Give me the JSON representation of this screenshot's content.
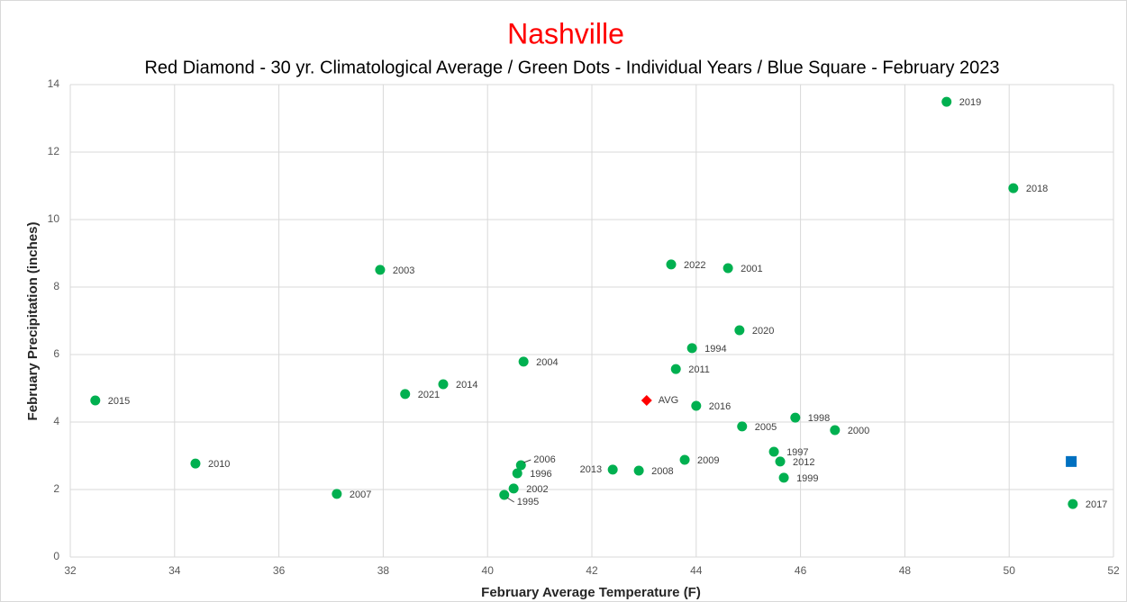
{
  "chart_data": {
    "type": "scatter",
    "title": "Nashville",
    "subtitle": "Red Diamond - 30 yr. Climatological Average / Green Dots - Individual Years / Blue Square - February 2023",
    "x_label": "February Average Temperature (F)",
    "y_label": "February Precipitation (inches)",
    "xlim": [
      32,
      52
    ],
    "xticks": [
      32,
      34,
      36,
      38,
      40,
      42,
      44,
      46,
      48,
      50,
      52
    ],
    "ylim": [
      0,
      14
    ],
    "yticks": [
      0,
      2,
      4,
      6,
      8,
      10,
      12,
      14
    ],
    "grid": true,
    "points_color": "#00b050",
    "points": [
      {
        "label": "2019",
        "x": 48.8,
        "y": 13.49
      },
      {
        "label": "2018",
        "x": 50.08,
        "y": 10.93
      },
      {
        "label": "2003",
        "x": 37.94,
        "y": 8.51
      },
      {
        "label": "2022",
        "x": 43.52,
        "y": 8.67
      },
      {
        "label": "2001",
        "x": 44.61,
        "y": 8.56
      },
      {
        "label": "2020",
        "x": 44.83,
        "y": 6.72
      },
      {
        "label": "1994",
        "x": 43.92,
        "y": 6.19
      },
      {
        "label": "2004",
        "x": 40.69,
        "y": 5.79
      },
      {
        "label": "2011",
        "x": 43.61,
        "y": 5.57
      },
      {
        "label": "2014",
        "x": 39.15,
        "y": 5.12
      },
      {
        "label": "2021",
        "x": 38.42,
        "y": 4.83
      },
      {
        "label": "2015",
        "x": 32.48,
        "y": 4.64
      },
      {
        "label": "2016",
        "x": 44.0,
        "y": 4.48
      },
      {
        "label": "1998",
        "x": 45.9,
        "y": 4.13
      },
      {
        "label": "2000",
        "x": 46.66,
        "y": 3.76
      },
      {
        "label": "2005",
        "x": 44.88,
        "y": 3.87
      },
      {
        "label": "1997",
        "x": 45.49,
        "y": 3.12
      },
      {
        "label": "2012",
        "x": 45.61,
        "y": 2.83
      },
      {
        "label": "1999",
        "x": 45.68,
        "y": 2.35
      },
      {
        "label": "2009",
        "x": 43.78,
        "y": 2.88
      },
      {
        "label": "2008",
        "x": 42.9,
        "y": 2.56
      },
      {
        "label": "2013",
        "x": 42.4,
        "y": 2.59
      },
      {
        "label": "2010",
        "x": 34.4,
        "y": 2.77
      },
      {
        "label": "2006",
        "x": 40.64,
        "y": 2.72
      },
      {
        "label": "1996",
        "x": 40.57,
        "y": 2.48
      },
      {
        "label": "2002",
        "x": 40.5,
        "y": 2.03
      },
      {
        "label": "1995",
        "x": 40.32,
        "y": 1.84
      },
      {
        "label": "2007",
        "x": 37.11,
        "y": 1.87
      },
      {
        "label": "2017",
        "x": 51.22,
        "y": 1.57
      }
    ],
    "average": {
      "label": "AVG",
      "x": 43.05,
      "y": 4.64,
      "color": "#ff0000"
    },
    "current": {
      "x": 51.19,
      "y": 2.83,
      "color": "#0070c0"
    }
  }
}
